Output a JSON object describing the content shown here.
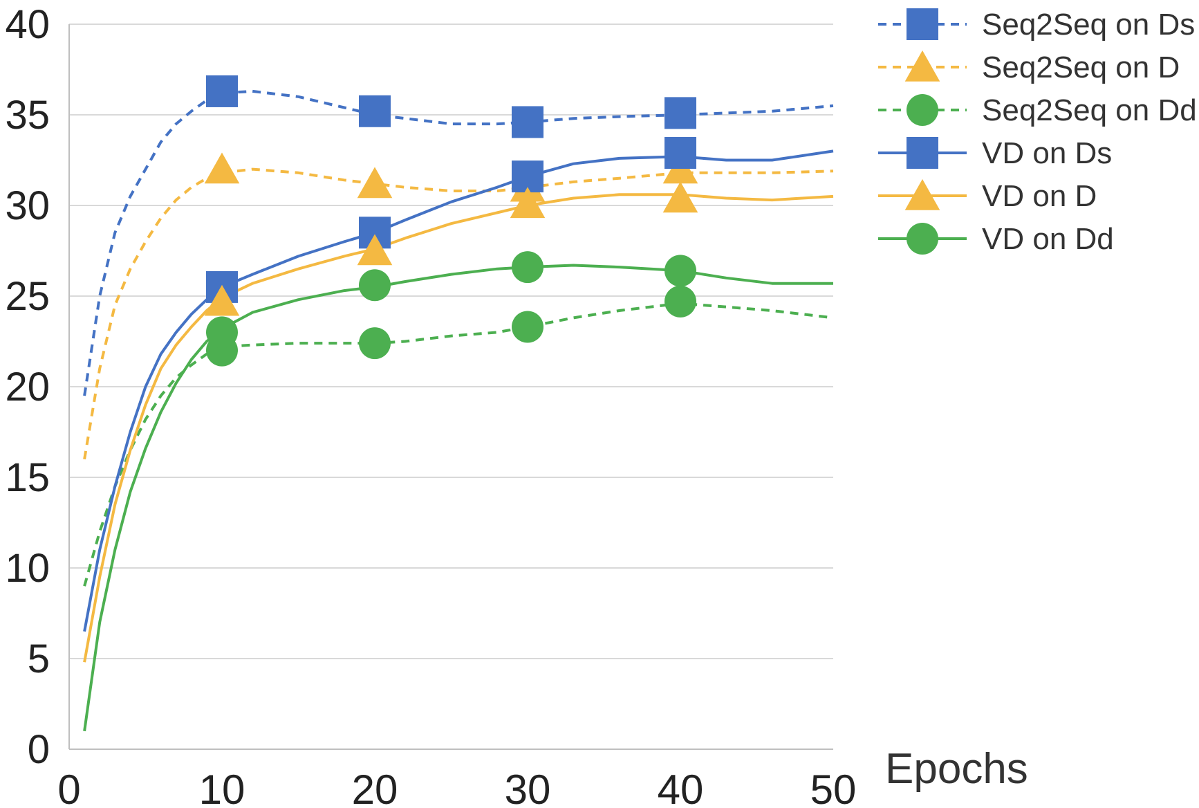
{
  "chart_data": {
    "type": "line",
    "title": "",
    "xlabel": "Epochs",
    "ylabel": "",
    "xlim": [
      0,
      50
    ],
    "ylim": [
      0,
      40
    ],
    "x_ticks": [
      "0",
      "10",
      "20",
      "30",
      "40",
      "50"
    ],
    "y_ticks": [
      "0",
      "5",
      "10",
      "15",
      "20",
      "25",
      "30",
      "35",
      "40"
    ],
    "grid": "horizontal",
    "legend_position": "right",
    "series": [
      {
        "name": "Seq2Seq on Ds",
        "color": "#4472C4",
        "line_style": "dashed",
        "marker": "square",
        "x": [
          1,
          2,
          3,
          4,
          5,
          6,
          7,
          8,
          9,
          10,
          12,
          15,
          18,
          20,
          22,
          25,
          28,
          30,
          33,
          36,
          40,
          43,
          46,
          50
        ],
        "y": [
          19.5,
          25,
          28.5,
          30.5,
          32,
          33.5,
          34.5,
          35.2,
          35.8,
          36.2,
          36.3,
          36,
          35.4,
          35,
          34.8,
          34.5,
          34.5,
          34.6,
          34.8,
          34.9,
          35,
          35.1,
          35.2,
          35.5
        ],
        "marker_x": [
          10,
          20,
          30,
          40
        ],
        "marker_y": [
          36.3,
          35.2,
          34.6,
          35.1
        ]
      },
      {
        "name": "Seq2Seq on D",
        "color": "#F4B942",
        "line_style": "dashed",
        "marker": "triangle",
        "x": [
          1,
          2,
          3,
          4,
          5,
          6,
          7,
          8,
          9,
          10,
          12,
          15,
          18,
          20,
          22,
          25,
          28,
          30,
          33,
          36,
          40,
          43,
          46,
          50
        ],
        "y": [
          16,
          21,
          24.5,
          26.5,
          28,
          29.3,
          30.3,
          31,
          31.5,
          31.8,
          32,
          31.8,
          31.4,
          31.2,
          31,
          30.8,
          30.8,
          31,
          31.3,
          31.5,
          31.8,
          31.8,
          31.8,
          31.9
        ],
        "marker_x": [
          10,
          20,
          30,
          40
        ],
        "marker_y": [
          32,
          31.2,
          31,
          32
        ]
      },
      {
        "name": "Seq2Seq on Dd",
        "color": "#4CAF50",
        "line_style": "dashed",
        "marker": "circle",
        "x": [
          1,
          2,
          3,
          4,
          5,
          6,
          7,
          8,
          9,
          10,
          12,
          15,
          18,
          20,
          22,
          25,
          28,
          30,
          33,
          36,
          40,
          43,
          46,
          50
        ],
        "y": [
          9,
          12,
          14.5,
          16.5,
          18.2,
          19.5,
          20.5,
          21.2,
          21.8,
          22.2,
          22.3,
          22.4,
          22.4,
          22.4,
          22.5,
          22.8,
          23,
          23.3,
          23.8,
          24.2,
          24.6,
          24.4,
          24.2,
          23.8
        ],
        "marker_x": [
          10,
          20,
          30,
          40
        ],
        "marker_y": [
          22,
          22.4,
          23.3,
          24.7
        ]
      },
      {
        "name": "VD on Ds",
        "color": "#4472C4",
        "line_style": "solid",
        "marker": "square",
        "x": [
          1,
          2,
          3,
          4,
          5,
          6,
          7,
          8,
          9,
          10,
          12,
          15,
          18,
          20,
          22,
          25,
          28,
          30,
          33,
          36,
          40,
          43,
          46,
          50
        ],
        "y": [
          6.5,
          11,
          14.5,
          17.5,
          20,
          21.8,
          23,
          24,
          24.8,
          25.5,
          26.2,
          27.2,
          28,
          28.5,
          29.2,
          30.2,
          31,
          31.6,
          32.3,
          32.6,
          32.7,
          32.5,
          32.5,
          33
        ],
        "marker_x": [
          10,
          20,
          30,
          40
        ],
        "marker_y": [
          25.5,
          28.5,
          31.6,
          32.9
        ]
      },
      {
        "name": "VD on D",
        "color": "#F4B942",
        "line_style": "solid",
        "marker": "triangle",
        "x": [
          1,
          2,
          3,
          4,
          5,
          6,
          7,
          8,
          9,
          10,
          12,
          15,
          18,
          20,
          22,
          25,
          28,
          30,
          33,
          36,
          40,
          43,
          46,
          50
        ],
        "y": [
          4.8,
          9.5,
          13.5,
          16.5,
          19,
          21,
          22.3,
          23.3,
          24.2,
          24.9,
          25.7,
          26.5,
          27.2,
          27.6,
          28.2,
          29,
          29.6,
          30,
          30.4,
          30.6,
          30.6,
          30.4,
          30.3,
          30.5
        ],
        "marker_x": [
          10,
          20,
          30,
          40
        ],
        "marker_y": [
          24.7,
          27.5,
          30.1,
          30.4
        ]
      },
      {
        "name": "VD on Dd",
        "color": "#4CAF50",
        "line_style": "solid",
        "marker": "circle",
        "x": [
          1,
          2,
          3,
          4,
          5,
          6,
          7,
          8,
          9,
          10,
          12,
          15,
          18,
          20,
          22,
          25,
          28,
          30,
          33,
          36,
          40,
          43,
          46,
          50
        ],
        "y": [
          1,
          7,
          11,
          14.2,
          16.6,
          18.6,
          20.2,
          21.5,
          22.5,
          23.2,
          24.1,
          24.8,
          25.3,
          25.5,
          25.8,
          26.2,
          26.5,
          26.6,
          26.7,
          26.6,
          26.4,
          26,
          25.7,
          25.7
        ],
        "marker_x": [
          10,
          20,
          30,
          40
        ],
        "marker_y": [
          23,
          25.6,
          26.6,
          26.4
        ]
      }
    ]
  }
}
